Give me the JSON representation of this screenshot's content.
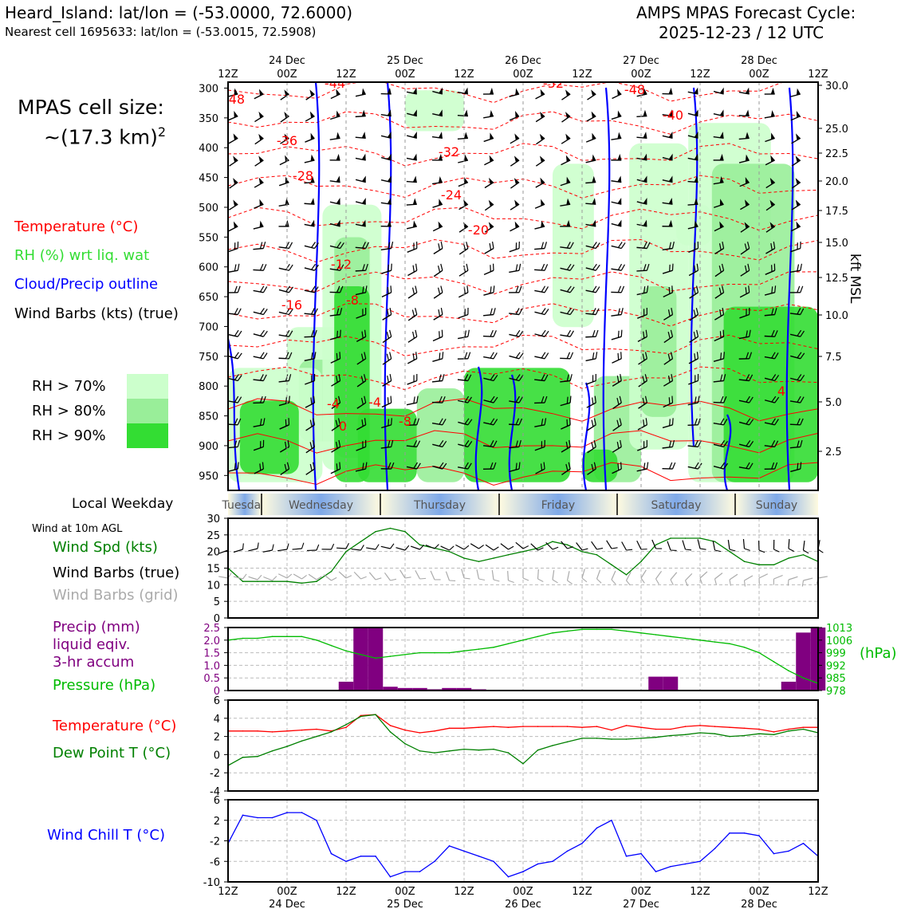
{
  "header": {
    "location_line": "Heard_Island: lat/lon = (-53.0000, 72.6000)",
    "nearest_line": "Nearest cell 1695633: lat/lon = (-53.0015, 72.5908)",
    "cycle_title": "AMPS MPAS Forecast Cycle:",
    "cycle_time": "2025-12-23 / 12 UTC"
  },
  "cell_size": {
    "line1": "MPAS cell size:",
    "line2": "~(17.3 km)",
    "exponent": "2"
  },
  "legend": {
    "temperature": "Temperature (°C)",
    "rh": "RH (%) wrt liq. wat",
    "cloud": "Cloud/Precip outline",
    "wind": "Wind Barbs (kts) (true)",
    "rh70": "RH > 70%",
    "rh80": "RH > 80%",
    "rh90": "RH > 90%"
  },
  "colors": {
    "temperature": "#ff0000",
    "rh_label": "#33dd33",
    "cloud": "#0000ff",
    "rh70": "#ccffcc",
    "rh80": "#99ee99",
    "rh90": "#33dd33",
    "wind_speed": "#008000",
    "grid_barbs": "#aaaaaa",
    "precip": "#800080",
    "pressure": "#00bb00",
    "dewpoint": "#008000",
    "windchill": "#0000ff"
  },
  "time_axis": {
    "labels": [
      "12Z",
      "00Z",
      "12Z",
      "00Z",
      "12Z",
      "00Z",
      "12Z",
      "00Z",
      "12Z",
      "00Z",
      "12Z"
    ],
    "dates": [
      "24 Dec",
      "25 Dec",
      "26 Dec",
      "27 Dec",
      "28 Dec"
    ]
  },
  "weekday": {
    "label": "Local Weekday",
    "days": [
      "Tuesday",
      "Wednesday",
      "Thursday",
      "Friday",
      "Saturday",
      "Sunday"
    ]
  },
  "sounding": {
    "pressure_ticks": [
      300,
      350,
      400,
      450,
      500,
      550,
      600,
      650,
      700,
      750,
      800,
      850,
      900,
      950
    ],
    "kft_ticks": [
      "30.0",
      "25.0",
      "22.5",
      "20.0",
      "17.5",
      "15.0",
      "12.5",
      "10.0",
      "7.5",
      "5.0",
      "2.5"
    ],
    "kft_label": "kft MSL",
    "temp_labels": [
      "-48",
      "-44",
      "-44",
      "-52",
      "-48",
      "-40",
      "-36",
      "-32",
      "-28",
      "-24",
      "-20",
      "-16",
      "-12",
      "-8",
      "-4",
      "0",
      "4",
      "-4",
      "-8"
    ]
  },
  "panel_wind": {
    "caption": "Wind at 10m AGL",
    "label_speed": "Wind Spd (kts)",
    "label_barbs_true": "Wind Barbs (true)",
    "label_barbs_grid": "Wind Barbs (grid)",
    "y_ticks": [
      "30",
      "25",
      "20",
      "15",
      "10",
      "5",
      "0"
    ]
  },
  "panel_precip": {
    "label_precip_1": "Precip (mm)",
    "label_precip_2": "liquid eqiv.",
    "label_precip_3": "3-hr accum",
    "label_pressure": "Pressure (hPa)",
    "y_ticks_left": [
      "2.5",
      "2.0",
      "1.5",
      "1.0",
      "0.5",
      "0"
    ],
    "y_ticks_right": [
      "1013",
      "1006",
      "999",
      "992",
      "985",
      "978"
    ],
    "right_unit": "(hPa)"
  },
  "panel_temp": {
    "label_temp": "Temperature (°C)",
    "label_dew": "Dew Point T (°C)",
    "y_ticks": [
      "6",
      "4",
      "2",
      "0",
      "-2",
      "-4"
    ]
  },
  "panel_windchill": {
    "label": "Wind Chill T (°C)",
    "y_ticks": [
      "6",
      "2",
      "-2",
      "-6",
      "-10"
    ]
  },
  "chart_data": [
    {
      "type": "line",
      "name": "10m wind",
      "x_hours": [
        0,
        3,
        6,
        9,
        12,
        15,
        18,
        21,
        24,
        27,
        30,
        33,
        36,
        39,
        42,
        45,
        48,
        51,
        54,
        57,
        60,
        63,
        66,
        69,
        72,
        75,
        78,
        81,
        84,
        87,
        90,
        93,
        96,
        99,
        102,
        105,
        108,
        111,
        114,
        117,
        120
      ],
      "series": [
        {
          "name": "Wind Spd (kts)",
          "values": [
            15,
            11,
            11,
            11,
            11,
            10.5,
            11,
            14,
            20,
            23,
            26,
            27,
            26,
            22,
            21,
            20,
            18,
            17,
            18,
            19,
            20,
            21,
            23,
            22,
            20,
            19,
            16,
            13,
            17,
            22,
            24,
            24,
            24,
            23,
            20,
            17,
            16,
            16,
            18,
            19,
            17
          ]
        }
      ],
      "ylim": [
        0,
        30
      ]
    },
    {
      "type": "bar",
      "name": "precip and pressure",
      "x_hours": [
        0,
        3,
        6,
        9,
        12,
        15,
        18,
        21,
        24,
        27,
        30,
        33,
        36,
        39,
        42,
        45,
        48,
        51,
        54,
        57,
        60,
        63,
        66,
        69,
        72,
        75,
        78,
        81,
        84,
        87,
        90,
        93,
        96,
        99,
        102,
        105,
        108,
        111,
        114,
        117,
        120
      ],
      "precip_values": [
        0,
        0,
        0,
        0,
        0,
        0,
        0,
        0,
        0.35,
        2.5,
        2.5,
        0.15,
        0.1,
        0.1,
        0.05,
        0.1,
        0.1,
        0.05,
        0,
        0,
        0,
        0,
        0,
        0,
        0,
        0,
        0,
        0,
        0,
        0.55,
        0.55,
        0,
        0,
        0,
        0,
        0,
        0,
        0,
        0.35,
        2.3,
        2.5
      ],
      "pressure_values": [
        1006,
        1007,
        1007,
        1008,
        1008,
        1008,
        1006,
        1003,
        1000,
        998,
        996,
        997,
        998,
        999,
        999,
        999,
        1000,
        1001,
        1002,
        1004,
        1006,
        1008,
        1010,
        1011,
        1012,
        1012,
        1012,
        1011,
        1010,
        1009,
        1008,
        1007,
        1006,
        1005,
        1004,
        1002,
        999,
        994,
        989,
        985,
        982
      ],
      "ylim_precip": [
        0,
        2.5
      ],
      "ylim_pressure": [
        978,
        1013
      ]
    },
    {
      "type": "line",
      "name": "temperature and dew point",
      "x_hours": [
        0,
        3,
        6,
        9,
        12,
        15,
        18,
        21,
        24,
        27,
        30,
        33,
        36,
        39,
        42,
        45,
        48,
        51,
        54,
        57,
        60,
        63,
        66,
        69,
        72,
        75,
        78,
        81,
        84,
        87,
        90,
        93,
        96,
        99,
        102,
        105,
        108,
        111,
        114,
        117,
        120
      ],
      "series": [
        {
          "name": "Temperature (°C)",
          "values": [
            2.6,
            2.6,
            2.6,
            2.5,
            2.6,
            2.7,
            2.8,
            2.6,
            3.0,
            4.3,
            4.4,
            3.2,
            2.7,
            2.4,
            2.6,
            2.9,
            2.9,
            3.0,
            3.1,
            3.0,
            3.1,
            3.1,
            3.1,
            3.1,
            3.0,
            3.1,
            2.7,
            3.2,
            3.0,
            2.8,
            2.8,
            3.1,
            3.2,
            3.1,
            3.0,
            2.9,
            2.8,
            2.5,
            2.8,
            3.0,
            3.0
          ]
        },
        {
          "name": "Dew Point T (°C)",
          "values": [
            -1.2,
            -0.3,
            -0.2,
            0.4,
            0.9,
            1.5,
            2.0,
            2.5,
            3.3,
            4.2,
            4.4,
            2.5,
            1.2,
            0.4,
            0.2,
            0.4,
            0.6,
            0.5,
            0.6,
            0.2,
            -1.0,
            0.5,
            1.0,
            1.4,
            1.8,
            1.8,
            1.7,
            1.7,
            1.8,
            1.9,
            2.1,
            2.2,
            2.4,
            2.3,
            2.0,
            2.1,
            2.3,
            2.2,
            2.6,
            2.8,
            2.4
          ]
        }
      ],
      "ylim": [
        -4,
        6
      ]
    },
    {
      "type": "line",
      "name": "wind chill",
      "x_hours": [
        0,
        3,
        6,
        9,
        12,
        15,
        18,
        21,
        24,
        27,
        30,
        33,
        36,
        39,
        42,
        45,
        48,
        51,
        54,
        57,
        60,
        63,
        66,
        69,
        72,
        75,
        78,
        81,
        84,
        87,
        90,
        93,
        96,
        99,
        102,
        105,
        108,
        111,
        114,
        117,
        120
      ],
      "series": [
        {
          "name": "Wind Chill T (°C)",
          "values": [
            -2.5,
            3.0,
            2.5,
            2.5,
            3.5,
            3.5,
            2.0,
            -4.5,
            -6.0,
            -5.0,
            -5.0,
            -9.0,
            -8.0,
            -8.0,
            -6.0,
            -3.0,
            -4.0,
            -5.0,
            -6.0,
            -9.0,
            -8.0,
            -6.5,
            -6.0,
            -4.0,
            -2.5,
            0.5,
            2.0,
            -5.0,
            -4.5,
            -8.0,
            -7.0,
            -6.5,
            -6.0,
            -3.5,
            -0.5,
            -0.5,
            -1.0,
            -4.5,
            -4.0,
            -2.5,
            -5.0
          ]
        }
      ],
      "ylim": [
        -10,
        6
      ]
    }
  ]
}
